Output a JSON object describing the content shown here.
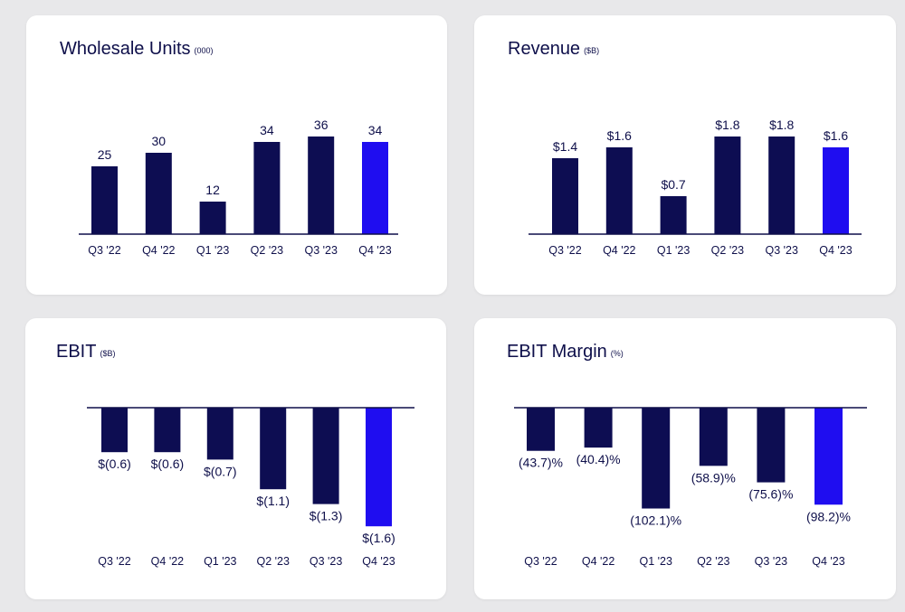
{
  "colors": {
    "bar": "#0d0d52",
    "highlight": "#1f0df0",
    "axis": "#0e0f4a",
    "text": "#0e0f4a"
  },
  "chart_data": [
    {
      "type": "bar",
      "title": "Wholesale Units",
      "unit": "(000)",
      "categories": [
        "Q3 '22",
        "Q4 '22",
        "Q1 '23",
        "Q2 '23",
        "Q3 '23",
        "Q4 '23"
      ],
      "values": [
        25,
        30,
        12,
        34,
        36,
        34
      ],
      "labels": [
        "25",
        "30",
        "12",
        "34",
        "36",
        "34"
      ],
      "highlight_index": 5,
      "ylim": [
        0,
        50
      ]
    },
    {
      "type": "bar",
      "title": "Revenue",
      "unit": "($B)",
      "categories": [
        "Q3 '22",
        "Q4 '22",
        "Q1 '23",
        "Q2 '23",
        "Q3 '23",
        "Q4 '23"
      ],
      "values": [
        1.4,
        1.6,
        0.7,
        1.8,
        1.8,
        1.6
      ],
      "labels": [
        "$1.4",
        "$1.6",
        "$0.7",
        "$1.8",
        "$1.8",
        "$1.6"
      ],
      "highlight_index": 5,
      "ylim": [
        0,
        2.5
      ]
    },
    {
      "type": "bar",
      "title": "EBIT",
      "unit": "($B)",
      "categories": [
        "Q3 '22",
        "Q4 '22",
        "Q1 '23",
        "Q2 '23",
        "Q3 '23",
        "Q4 '23"
      ],
      "values": [
        -0.6,
        -0.6,
        -0.7,
        -1.1,
        -1.3,
        -1.6
      ],
      "labels": [
        "$(0.6)",
        "$(0.6)",
        "$(0.7)",
        "$(1.1)",
        "$(1.3)",
        "$(1.6)"
      ],
      "highlight_index": 5,
      "ylim": [
        -2.0,
        0
      ]
    },
    {
      "type": "bar",
      "title": "EBIT Margin",
      "unit": "(%)",
      "categories": [
        "Q3 '22",
        "Q4 '22",
        "Q1 '23",
        "Q2 '23",
        "Q3 '23",
        "Q4 '23"
      ],
      "values": [
        -43.7,
        -40.4,
        -102.1,
        -58.9,
        -75.6,
        -98.2
      ],
      "labels": [
        "(43.7)%",
        "(40.4)%",
        "(102.1)%",
        "(58.9)%",
        "(75.6)%",
        "(98.2)%"
      ],
      "highlight_index": 5,
      "ylim": [
        -130,
        0
      ]
    }
  ]
}
